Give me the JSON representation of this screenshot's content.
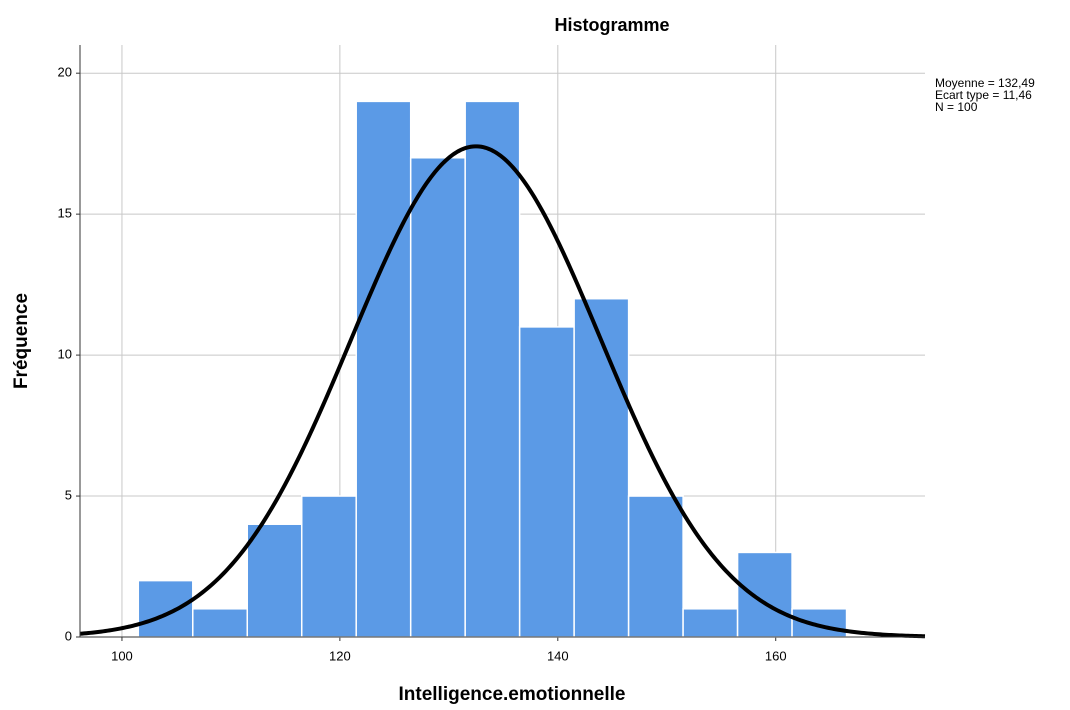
{
  "chart_data": {
    "type": "histogram",
    "title": "Histogramme",
    "x_label": "Intelligence.emotionnelle",
    "y_label": "Fréquence",
    "bins": [
      101.5,
      106.5,
      111.5,
      116.5,
      121.5,
      126.5,
      131.5,
      136.5,
      141.5,
      146.5,
      151.5,
      156.5,
      161.5,
      166.5
    ],
    "values": [
      2,
      1,
      4,
      5,
      19,
      17,
      19,
      11,
      12,
      5,
      1,
      3,
      1
    ],
    "color": "#5b9ae6",
    "xlim": [
      96.15,
      173.7
    ],
    "xticks": [
      100,
      120,
      140,
      160
    ],
    "ylim": [
      0,
      21
    ],
    "yticks": [
      0,
      5,
      10,
      15,
      20
    ],
    "grid": true,
    "stats": [
      "Moyenne = 132,49",
      "Ecart type = 11,46",
      "N = 100"
    ],
    "normal_curve": {
      "mean": 132.49,
      "sd": 11.46,
      "n": 100
    }
  }
}
